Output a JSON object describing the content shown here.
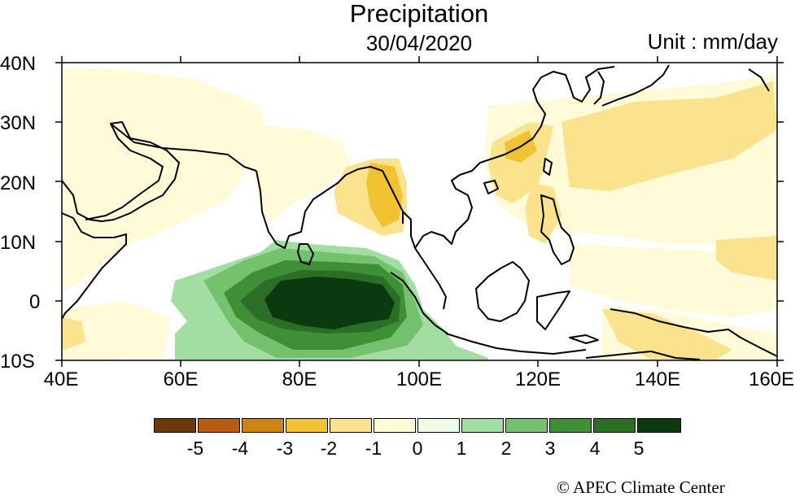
{
  "title": "Precipitation",
  "date": "30/04/2020",
  "unit": "Unit : mm/day",
  "credit": "© APEC Climate Center",
  "lat_labels": [
    "40N",
    "30N",
    "20N",
    "10N",
    "0",
    "10S"
  ],
  "lon_labels": [
    "40E",
    "60E",
    "80E",
    "100E",
    "120E",
    "140E",
    "160E"
  ],
  "colorbar": {
    "colors": [
      "#6b3a0c",
      "#b85c10",
      "#cf8314",
      "#f1c232",
      "#fbe38e",
      "#fffbd9",
      "#eefbe6",
      "#a2dea2",
      "#74c26e",
      "#3f8f36",
      "#2b6e25",
      "#0c3a10"
    ],
    "labels": [
      "-5",
      "-4",
      "-3",
      "-2",
      "-1",
      "0",
      "1",
      "2",
      "3",
      "4",
      "5"
    ]
  },
  "map": {
    "lon_range": [
      40,
      160
    ],
    "lat_range": [
      -10,
      40
    ],
    "variable": "precipitation anomaly",
    "wet_center": "Indian Ocean near equator, 75E-95E (above +5)",
    "dry_centers": [
      "Bay of Bengal / Myanmar 90E-97E, 15N-22N",
      "South China 115E-120E, 20N-25N",
      "Western Pacific 120E-160E"
    ]
  }
}
